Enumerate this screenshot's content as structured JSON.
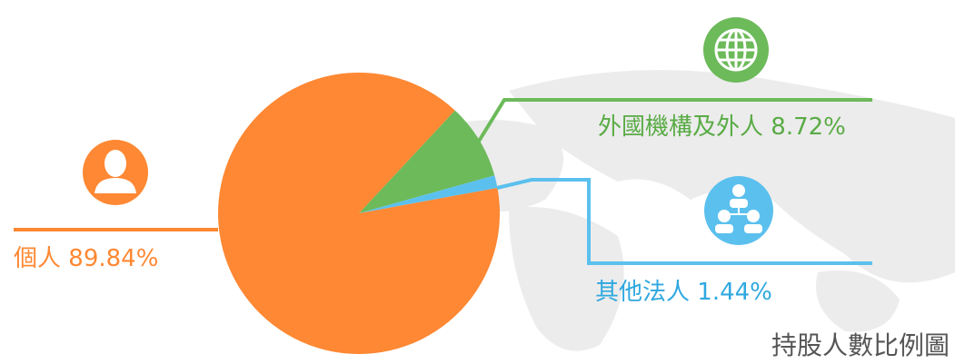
{
  "chart_data": {
    "type": "pie",
    "title": "持股人數比例圖",
    "categories": [
      "個人",
      "外國機構及外人",
      "其他法人"
    ],
    "values": [
      89.84,
      8.72,
      1.44
    ],
    "value_labels": [
      "89.84%",
      "8.72%",
      "1.44%"
    ],
    "colors": [
      "#fe8833",
      "#6cba5a",
      "#5bc0ee"
    ]
  }
}
